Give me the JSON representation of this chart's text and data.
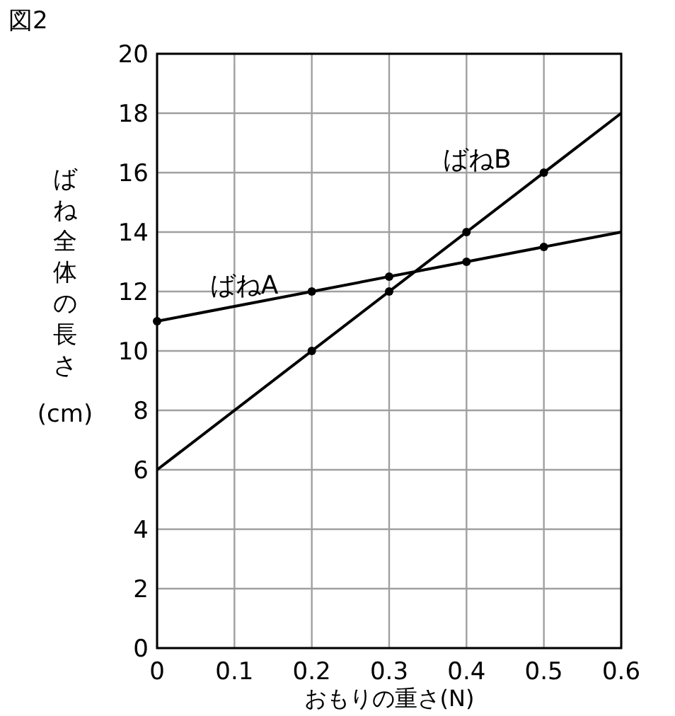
{
  "chart_data": {
    "type": "line",
    "title": "図2",
    "xlabel": "おもりの重さ(N)",
    "ylabel": "ばね全体の長さ(cm)",
    "xlim": [
      0,
      0.6
    ],
    "ylim": [
      0,
      20
    ],
    "xticks": [
      0,
      0.1,
      0.2,
      0.3,
      0.4,
      0.5,
      0.6
    ],
    "yticks": [
      0,
      2,
      4,
      6,
      8,
      10,
      12,
      14,
      16,
      18,
      20
    ],
    "grid": true,
    "series": [
      {
        "name": "ばねA",
        "type": "line",
        "color": "#000000",
        "x": [
          0,
          0.6
        ],
        "values": [
          11,
          14
        ]
      },
      {
        "name": "ばねB",
        "type": "line",
        "color": "#000000",
        "x": [
          0,
          0.6
        ],
        "values": [
          6,
          18
        ]
      },
      {
        "type": "scatter",
        "marker": "circle",
        "color": "#000000",
        "x": [
          0,
          0.2,
          0.3,
          0.4,
          0.5
        ],
        "values": [
          11,
          12,
          12.5,
          13,
          13.5
        ]
      },
      {
        "type": "scatter",
        "marker": "circle",
        "color": "#000000",
        "x": [
          0.2,
          0.3,
          0.4,
          0.5
        ],
        "values": [
          10,
          12,
          14,
          16
        ]
      }
    ]
  }
}
